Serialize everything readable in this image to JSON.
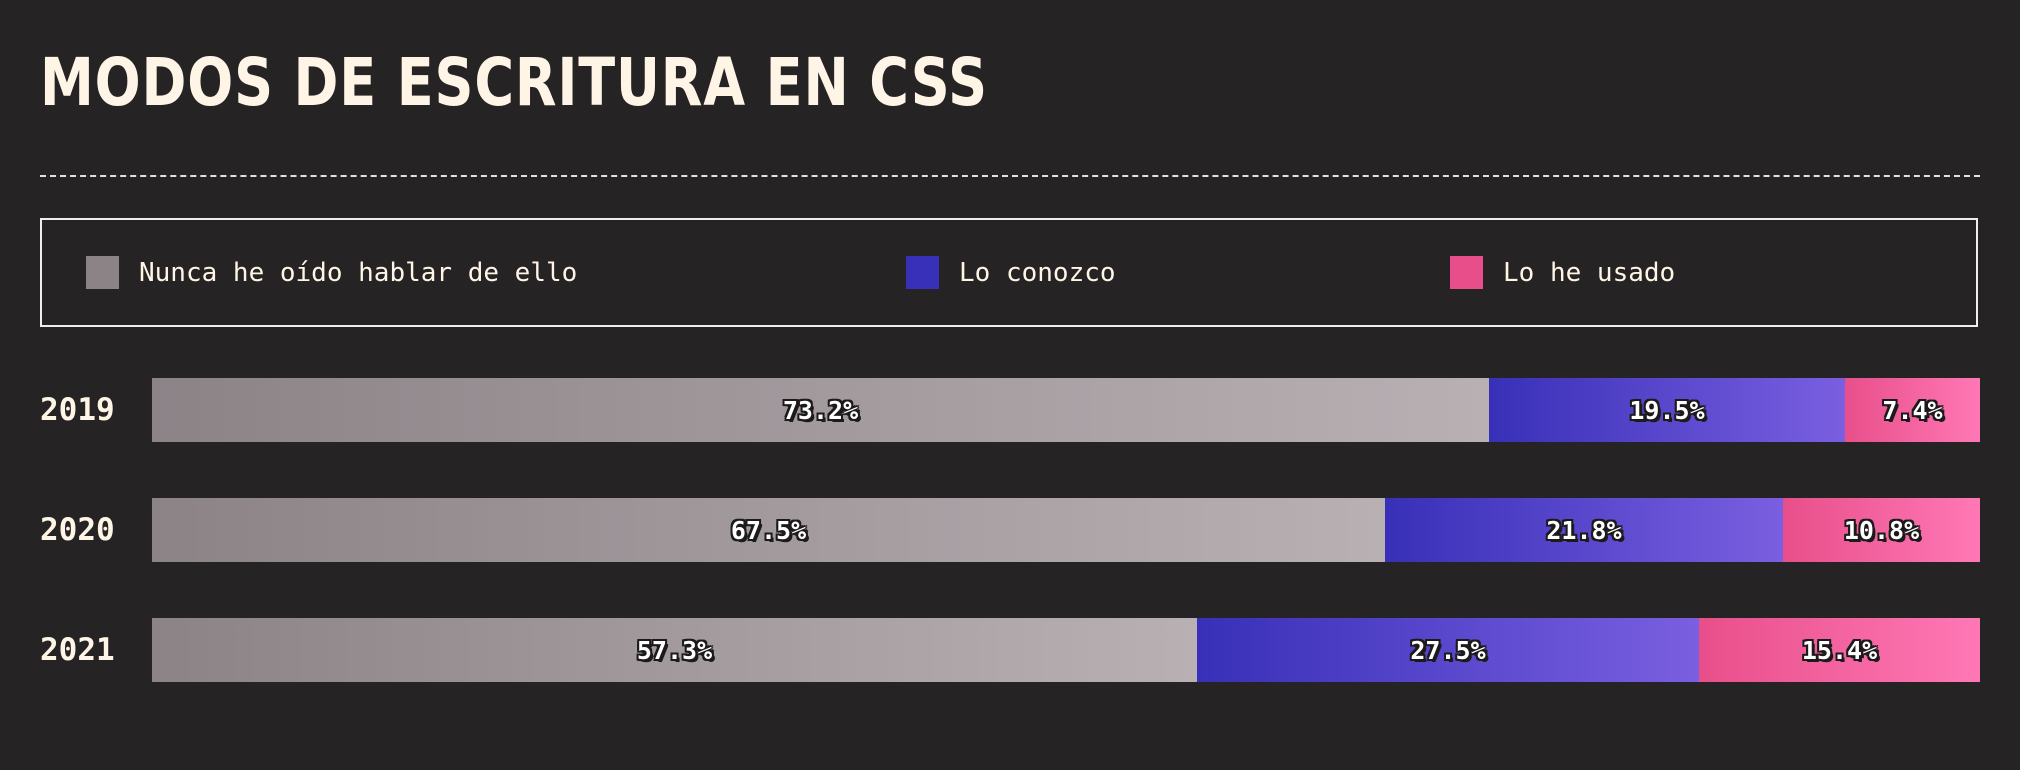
{
  "title": "MODOS DE ESCRITURA EN CSS",
  "chart_data": {
    "type": "bar",
    "stacked": true,
    "orientation": "horizontal",
    "title": "MODOS DE ESCRITURA EN CSS",
    "categories": [
      "2019",
      "2020",
      "2021"
    ],
    "series": [
      {
        "name": "Nunca he oído hablar de ello",
        "values": [
          73.2,
          67.5,
          57.3
        ],
        "labels": [
          "73.2%",
          "67.5%",
          "57.3%"
        ],
        "color": "#8c8387"
      },
      {
        "name": "Lo conozco",
        "values": [
          19.5,
          21.8,
          27.5
        ],
        "labels": [
          "19.5%",
          "21.8%",
          "27.5%"
        ],
        "color": "#3830b8"
      },
      {
        "name": "Lo he usado",
        "values": [
          7.4,
          10.8,
          15.4
        ],
        "labels": [
          "7.4%",
          "10.8%",
          "15.4%"
        ],
        "color": "#e84f8a"
      }
    ],
    "legend_position": "top",
    "grid": false
  }
}
